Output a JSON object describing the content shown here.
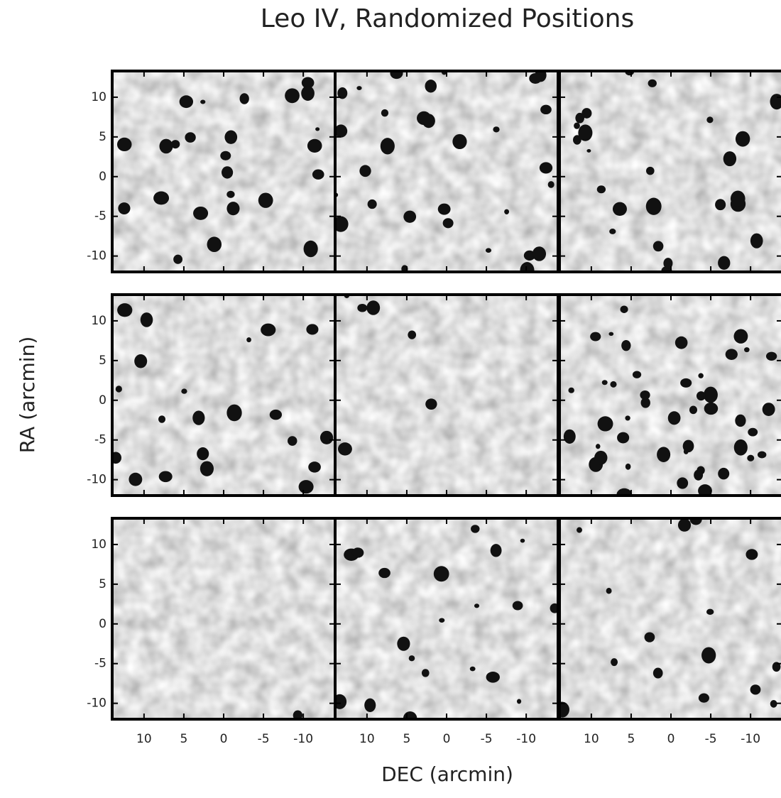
{
  "chart_data": {
    "type": "image-grid",
    "title": "Leo IV, Randomized Positions",
    "x_label": "DEC (arcmin)",
    "y_label": "RA (arcmin)",
    "xlim": [
      14,
      -14
    ],
    "ylim": [
      -12,
      13.3
    ],
    "xticks": [
      10,
      5,
      0,
      -5,
      -10
    ],
    "yticks": [
      10,
      5,
      0,
      -5,
      -10
    ]
  }
}
